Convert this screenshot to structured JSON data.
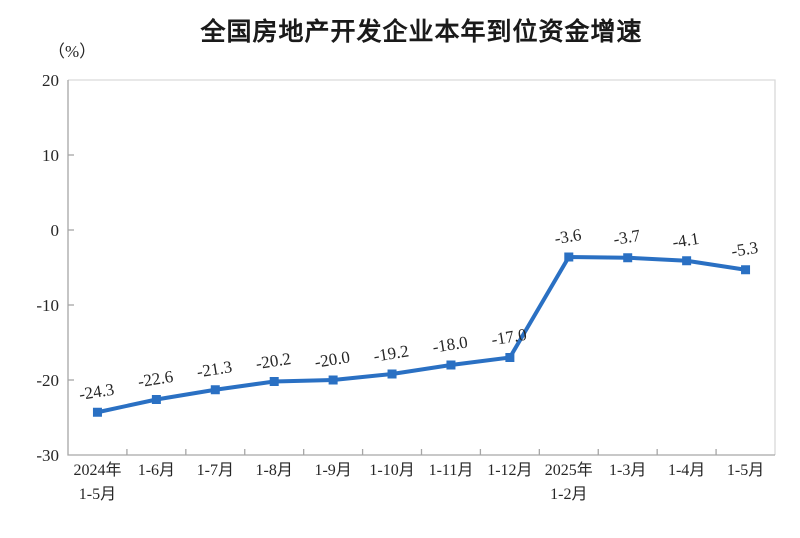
{
  "chart_data": {
    "type": "line",
    "title": "全国房地产开发企业本年到位资金增速",
    "unit_label": "（%）",
    "categories": [
      "2024年\n1-5月",
      "1-6月",
      "1-7月",
      "1-8月",
      "1-9月",
      "1-10月",
      "1-11月",
      "1-12月",
      "2025年\n1-2月",
      "1-3月",
      "1-4月",
      "1-5月"
    ],
    "values": [
      -24.3,
      -22.6,
      -21.3,
      -20.2,
      -20.0,
      -19.2,
      -18.0,
      -17.0,
      -3.6,
      -3.7,
      -4.1,
      -5.3
    ],
    "data_labels": [
      "-24.3",
      "-22.6",
      "-21.3",
      "-20.2",
      "-20.0",
      "-19.2",
      "-18.0",
      "-17.0",
      "-3.6",
      "-3.7",
      "-4.1",
      "-5.3"
    ],
    "y_ticks": [
      20,
      10,
      0,
      -10,
      -20,
      -30
    ],
    "ylim": [
      -30,
      20
    ],
    "xlabel": "",
    "ylabel": "（%）",
    "grid": false,
    "legend_position": "none",
    "line_color": "#2a70c3",
    "marker": "square",
    "text_color": "#262626",
    "axis_color": "#a6a6a6",
    "border_color": "#d9d9d9"
  }
}
